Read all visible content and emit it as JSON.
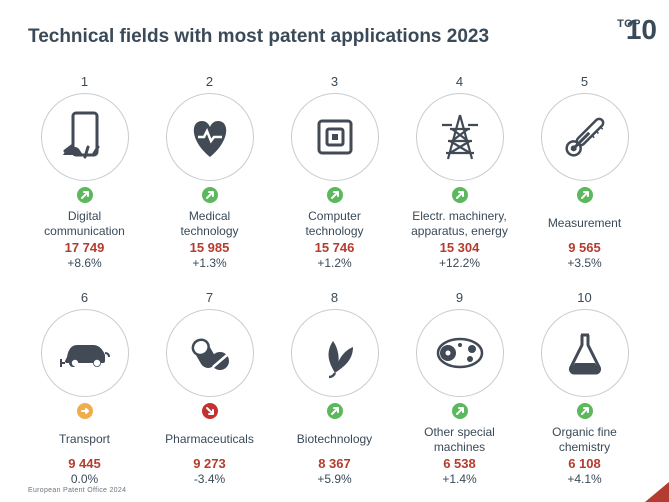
{
  "header": {
    "top_label": "TOP",
    "top_number": "10",
    "title": "Technical fields with most patent applications 2023"
  },
  "colors": {
    "text_dark": "#3a4a58",
    "value_red": "#b43c2e",
    "circle_border": "#c8ccd0",
    "badge_up": "#5cb85c",
    "badge_flat": "#f0ad4e",
    "badge_down": "#c53030",
    "icon_fill": "#414a55"
  },
  "items": [
    {
      "rank": "1",
      "label": "Digital\ncommunication",
      "value": "17 749",
      "change": "+8.6%",
      "trend": "up",
      "icon": "phone-touch"
    },
    {
      "rank": "2",
      "label": "Medical\ntechnology",
      "value": "15 985",
      "change": "+1.3%",
      "trend": "up",
      "icon": "heart-pulse"
    },
    {
      "rank": "3",
      "label": "Computer\ntechnology",
      "value": "15 746",
      "change": "+1.2%",
      "trend": "up",
      "icon": "cpu-chip"
    },
    {
      "rank": "4",
      "label": "Electr. machinery,\napparatus, energy",
      "value": "15 304",
      "change": "+12.2%",
      "trend": "up",
      "icon": "power-tower"
    },
    {
      "rank": "5",
      "label": "Measurement",
      "value": "9 565",
      "change": "+3.5%",
      "trend": "up",
      "icon": "thermometer"
    },
    {
      "rank": "6",
      "label": "Transport",
      "value": "9 445",
      "change": "0.0%",
      "trend": "flat",
      "icon": "ev-car"
    },
    {
      "rank": "7",
      "label": "Pharmaceuticals",
      "value": "9 273",
      "change": "-3.4%",
      "trend": "down",
      "icon": "pills"
    },
    {
      "rank": "8",
      "label": "Biotechnology",
      "value": "8 367",
      "change": "+5.9%",
      "trend": "up",
      "icon": "leaves"
    },
    {
      "rank": "9",
      "label": "Other special\nmachines",
      "value": "6 538",
      "change": "+1.4%",
      "trend": "up",
      "icon": "gears-belt"
    },
    {
      "rank": "10",
      "label": "Organic fine\nchemistry",
      "value": "6 108",
      "change": "+4.1%",
      "trend": "up",
      "icon": "flask"
    }
  ],
  "footer": "European Patent Office 2024"
}
